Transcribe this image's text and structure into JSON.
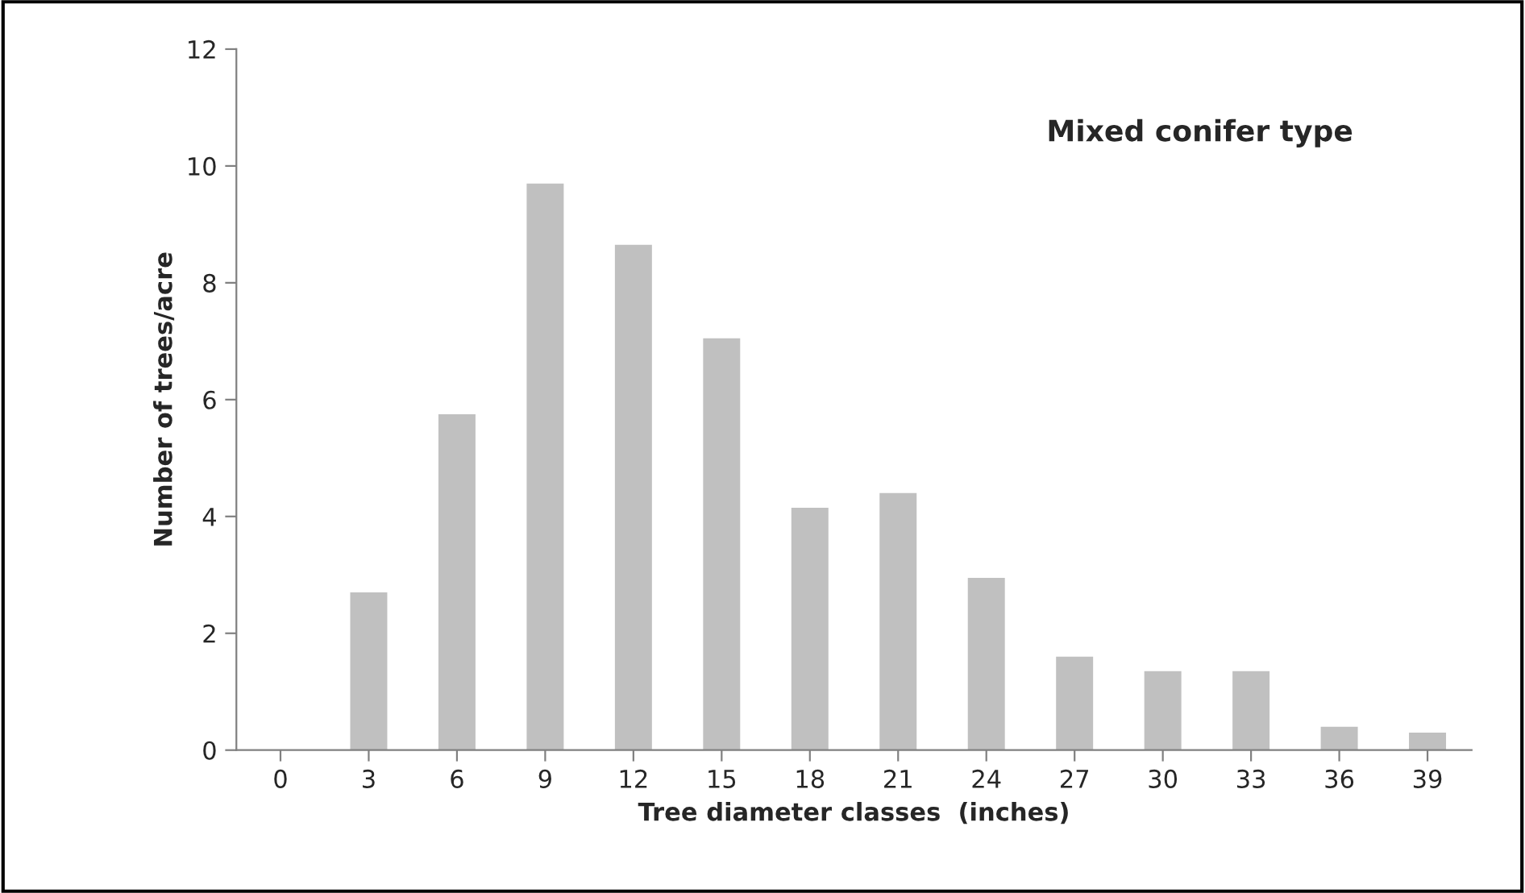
{
  "chart_data": {
    "type": "bar",
    "categories": [
      "0",
      "3",
      "6",
      "9",
      "12",
      "15",
      "18",
      "21",
      "24",
      "27",
      "30",
      "33",
      "36",
      "39"
    ],
    "values": [
      0,
      2.7,
      5.75,
      9.7,
      8.65,
      7.05,
      4.15,
      4.4,
      2.95,
      1.6,
      1.35,
      1.35,
      0.4,
      0.3
    ],
    "color": "#c0c0c0",
    "xlabel": "Tree diameter classes  (inches)",
    "ylabel": "Number of trees/acre",
    "annotations": [
      "Mixed conifer type"
    ],
    "ylim": [
      0,
      12
    ],
    "yticks": [
      0,
      2,
      4,
      6,
      8,
      10,
      12
    ],
    "grid": false,
    "legend": false
  }
}
